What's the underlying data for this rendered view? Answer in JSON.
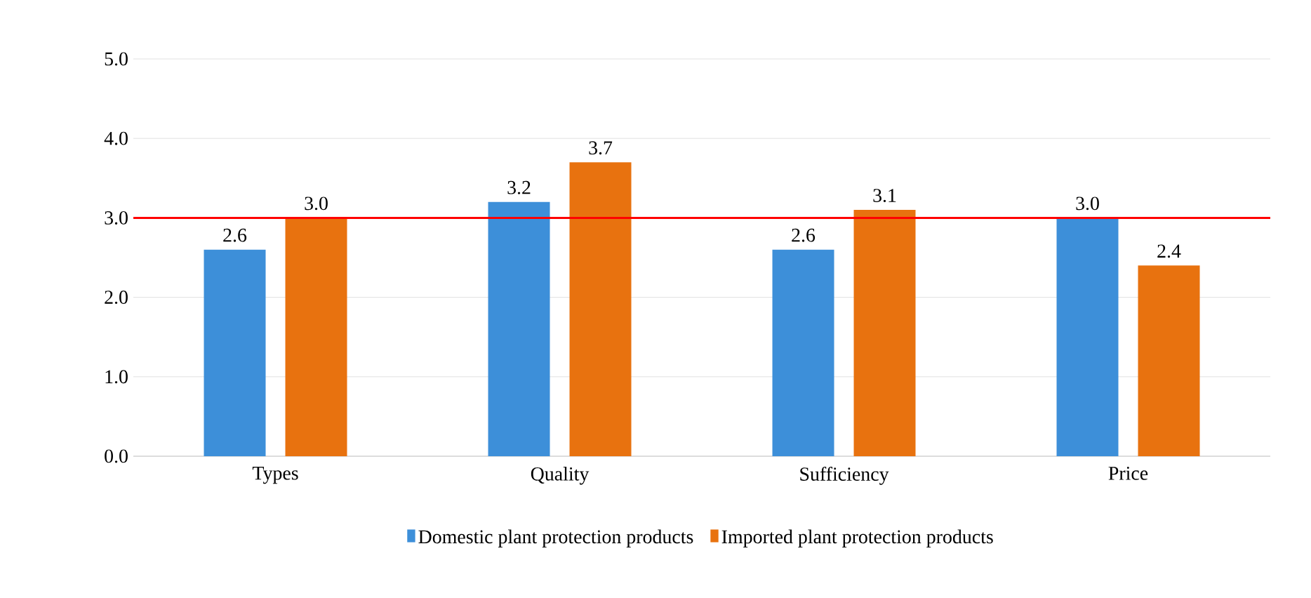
{
  "chart_data": {
    "type": "bar",
    "categories": [
      "Types",
      "Quality",
      "Sufficiency",
      "Price"
    ],
    "series": [
      {
        "name": "Domestic plant protection products",
        "color": "#3d8fd9",
        "values": [
          2.6,
          3.2,
          2.6,
          3.0
        ],
        "value_labels": [
          "2.6",
          "3.2",
          "2.6",
          "3.0"
        ]
      },
      {
        "name": "Imported plant protection products",
        "color": "#e8720f",
        "values": [
          3.0,
          3.7,
          3.1,
          2.4
        ],
        "value_labels": [
          "3.0",
          "3.7",
          "3.1",
          "2.4"
        ]
      }
    ],
    "ylim": [
      0,
      5
    ],
    "yticks": [
      {
        "value": 0,
        "label": "0.0"
      },
      {
        "value": 1,
        "label": "1.0"
      },
      {
        "value": 2,
        "label": "2.0"
      },
      {
        "value": 3,
        "label": "3.0"
      },
      {
        "value": 4,
        "label": "4.0"
      },
      {
        "value": 5,
        "label": "5.0"
      }
    ],
    "grid": "y",
    "legend": "bottom",
    "ref_lines": [
      {
        "axis": "y",
        "value": 3,
        "color": "#ff0000"
      }
    ]
  }
}
